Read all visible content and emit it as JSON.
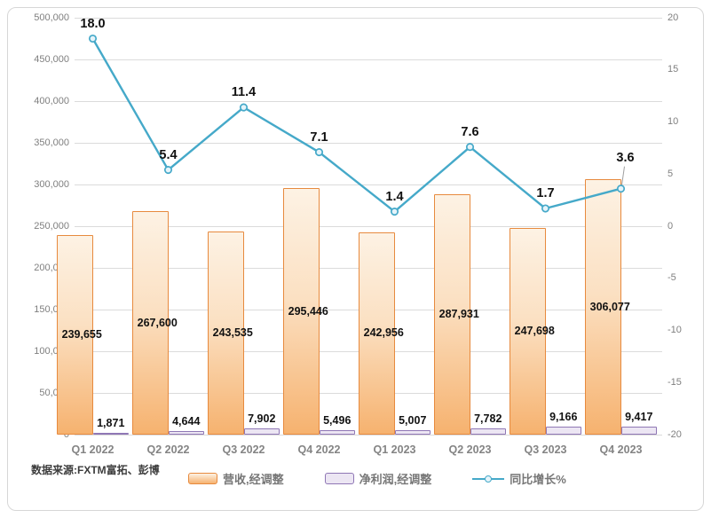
{
  "source_note": "数据来源:FXTM富拓、彭博",
  "chart_data": {
    "type": "combo",
    "subtypes": [
      "bar",
      "bar",
      "line"
    ],
    "categories": [
      "Q1 2022",
      "Q2 2022",
      "Q3 2022",
      "Q4 2022",
      "Q1 2023",
      "Q2 2023",
      "Q3 2023",
      "Q4 2023"
    ],
    "series": [
      {
        "name": "营收,经调整",
        "type": "bar",
        "axis": "left",
        "values": [
          239655,
          267600,
          243535,
          295446,
          242956,
          287931,
          247698,
          306077
        ],
        "labels": [
          "239,655",
          "267,600",
          "243,535",
          "295,446",
          "242,956",
          "287,931",
          "247,698",
          "306,077"
        ]
      },
      {
        "name": "净利润,经调整",
        "type": "bar",
        "axis": "left",
        "values": [
          1871,
          4644,
          7902,
          5496,
          5007,
          7782,
          9166,
          9417
        ],
        "labels": [
          "1,871",
          "4,644",
          "7,902",
          "5,496",
          "5,007",
          "7,782",
          "9,166",
          "9,417"
        ]
      },
      {
        "name": "同比增长%",
        "type": "line",
        "axis": "right",
        "values": [
          18.0,
          5.4,
          11.4,
          7.1,
          1.4,
          7.6,
          1.7,
          3.6
        ],
        "labels": [
          "18.0",
          "5.4",
          "11.4",
          "7.1",
          "1.4",
          "7.6",
          "1.7",
          "3.6"
        ]
      }
    ],
    "left_axis": {
      "min": 0,
      "max": 500000,
      "step": 50000,
      "tick_labels": [
        "500,000",
        "450,000",
        "400,000",
        "350,000",
        "300,000",
        "250,000",
        "200,000",
        "150,000",
        "100,000",
        "50,000",
        "0"
      ]
    },
    "right_axis": {
      "min": -20,
      "max": 20,
      "step": 5,
      "tick_labels": [
        "20",
        "15",
        "10",
        "5",
        "0",
        "-5",
        "-10",
        "-15",
        "-20"
      ]
    },
    "grid": true,
    "legend_position": "bottom",
    "colors": {
      "revenue_border": "#e78a3e",
      "revenue_fill_top": "#fdf2e4",
      "revenue_fill_bottom": "#f6b26f",
      "profit_border": "#8f77b5",
      "profit_fill": "#ece6f3",
      "line": "#45a9c9",
      "marker_fill": "#e6f4fa",
      "gridline": "#dbdbdb",
      "axis_text": "#7f7f7f",
      "data_label": "#111111",
      "leader_line": "#9e9e9e",
      "frame_border": "#d7d7d7"
    }
  },
  "legend": {
    "items": [
      {
        "label": "营收,经调整",
        "swatch": "bar-orange"
      },
      {
        "label": "净利润,经调整",
        "swatch": "bar-purple"
      },
      {
        "label": "同比增长%",
        "swatch": "line-teal"
      }
    ]
  }
}
